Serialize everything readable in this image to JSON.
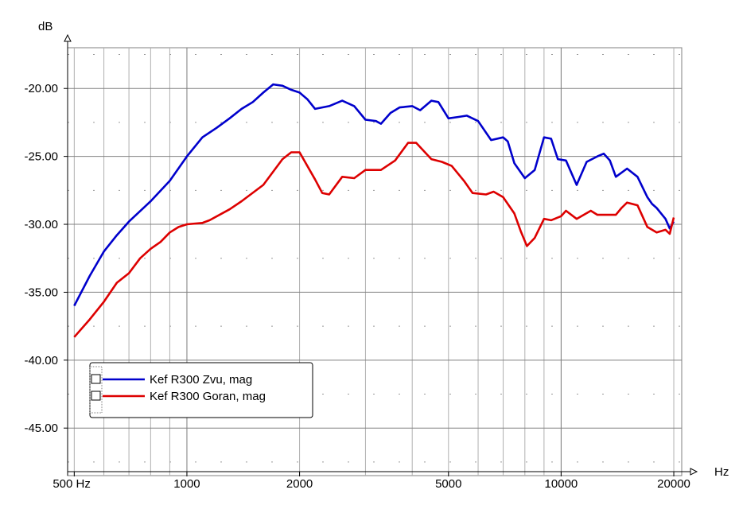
{
  "chart_data": {
    "type": "line",
    "x_scale": "log",
    "xlim": [
      480,
      21000
    ],
    "ylim": [
      -48.5,
      -17.0
    ],
    "ylabel": "dB",
    "xlabel": "Hz",
    "x_ticks": [
      500,
      1000,
      2000,
      5000,
      10000,
      20000
    ],
    "x_tick_labels": [
      "500 Hz",
      "1000",
      "2000",
      "5000",
      "10000",
      "20000"
    ],
    "y_ticks": [
      -20,
      -25,
      -30,
      -35,
      -40,
      -45
    ],
    "y_tick_labels": [
      "-20.00",
      "-25.00",
      "-30.00",
      "-35.00",
      "-40.00",
      "-45.00"
    ],
    "grid": true,
    "legend_position": "lower-left",
    "series": [
      {
        "name": "Kef R300 Zvu, mag",
        "color": "#0000cc",
        "points": [
          [
            500,
            -36.0
          ],
          [
            550,
            -33.8
          ],
          [
            600,
            -32.0
          ],
          [
            650,
            -30.8
          ],
          [
            700,
            -29.8
          ],
          [
            800,
            -28.3
          ],
          [
            900,
            -26.8
          ],
          [
            1000,
            -25.0
          ],
          [
            1100,
            -23.6
          ],
          [
            1200,
            -22.9
          ],
          [
            1300,
            -22.2
          ],
          [
            1400,
            -21.5
          ],
          [
            1500,
            -21.0
          ],
          [
            1600,
            -20.3
          ],
          [
            1700,
            -19.7
          ],
          [
            1800,
            -19.8
          ],
          [
            1900,
            -20.1
          ],
          [
            2000,
            -20.3
          ],
          [
            2100,
            -20.8
          ],
          [
            2200,
            -21.5
          ],
          [
            2400,
            -21.3
          ],
          [
            2600,
            -20.9
          ],
          [
            2800,
            -21.3
          ],
          [
            3000,
            -22.3
          ],
          [
            3200,
            -22.4
          ],
          [
            3300,
            -22.6
          ],
          [
            3500,
            -21.8
          ],
          [
            3700,
            -21.4
          ],
          [
            4000,
            -21.3
          ],
          [
            4200,
            -21.6
          ],
          [
            4500,
            -20.9
          ],
          [
            4700,
            -21.0
          ],
          [
            5000,
            -22.2
          ],
          [
            5300,
            -22.1
          ],
          [
            5600,
            -22.0
          ],
          [
            6000,
            -22.4
          ],
          [
            6500,
            -23.8
          ],
          [
            7000,
            -23.6
          ],
          [
            7200,
            -23.9
          ],
          [
            7500,
            -25.5
          ],
          [
            8000,
            -26.6
          ],
          [
            8500,
            -26.0
          ],
          [
            9000,
            -23.6
          ],
          [
            9400,
            -23.7
          ],
          [
            9800,
            -25.2
          ],
          [
            10300,
            -25.3
          ],
          [
            11000,
            -27.1
          ],
          [
            11700,
            -25.4
          ],
          [
            12500,
            -25.0
          ],
          [
            13000,
            -24.8
          ],
          [
            13500,
            -25.3
          ],
          [
            14000,
            -26.5
          ],
          [
            15000,
            -25.9
          ],
          [
            16000,
            -26.5
          ],
          [
            17000,
            -28.0
          ],
          [
            17500,
            -28.5
          ],
          [
            18000,
            -28.8
          ],
          [
            18500,
            -29.2
          ],
          [
            19000,
            -29.6
          ],
          [
            19500,
            -30.3
          ],
          [
            20000,
            -29.8
          ]
        ]
      },
      {
        "name": "Kef R300 Goran, mag",
        "color": "#dd0000",
        "points": [
          [
            500,
            -38.3
          ],
          [
            550,
            -37.0
          ],
          [
            600,
            -35.7
          ],
          [
            650,
            -34.3
          ],
          [
            700,
            -33.6
          ],
          [
            750,
            -32.5
          ],
          [
            800,
            -31.8
          ],
          [
            850,
            -31.3
          ],
          [
            900,
            -30.6
          ],
          [
            950,
            -30.2
          ],
          [
            1000,
            -30.0
          ],
          [
            1100,
            -29.9
          ],
          [
            1150,
            -29.7
          ],
          [
            1300,
            -28.9
          ],
          [
            1400,
            -28.3
          ],
          [
            1600,
            -27.1
          ],
          [
            1800,
            -25.2
          ],
          [
            1900,
            -24.7
          ],
          [
            2000,
            -24.7
          ],
          [
            2200,
            -26.7
          ],
          [
            2300,
            -27.7
          ],
          [
            2400,
            -27.8
          ],
          [
            2600,
            -26.5
          ],
          [
            2800,
            -26.6
          ],
          [
            3000,
            -26.0
          ],
          [
            3300,
            -26.0
          ],
          [
            3600,
            -25.3
          ],
          [
            3900,
            -24.0
          ],
          [
            4100,
            -24.0
          ],
          [
            4500,
            -25.2
          ],
          [
            4800,
            -25.4
          ],
          [
            5100,
            -25.7
          ],
          [
            5500,
            -26.8
          ],
          [
            5800,
            -27.7
          ],
          [
            6300,
            -27.8
          ],
          [
            6600,
            -27.6
          ],
          [
            7000,
            -28.0
          ],
          [
            7500,
            -29.2
          ],
          [
            7800,
            -30.5
          ],
          [
            8100,
            -31.6
          ],
          [
            8500,
            -31.0
          ],
          [
            9000,
            -29.6
          ],
          [
            9400,
            -29.7
          ],
          [
            10000,
            -29.4
          ],
          [
            10300,
            -29.0
          ],
          [
            11000,
            -29.6
          ],
          [
            12000,
            -29.0
          ],
          [
            12500,
            -29.3
          ],
          [
            14000,
            -29.3
          ],
          [
            14500,
            -28.8
          ],
          [
            15000,
            -28.4
          ],
          [
            16000,
            -28.6
          ],
          [
            17000,
            -30.2
          ],
          [
            18000,
            -30.6
          ],
          [
            19000,
            -30.4
          ],
          [
            19500,
            -30.7
          ],
          [
            20000,
            -29.5
          ]
        ]
      }
    ]
  }
}
